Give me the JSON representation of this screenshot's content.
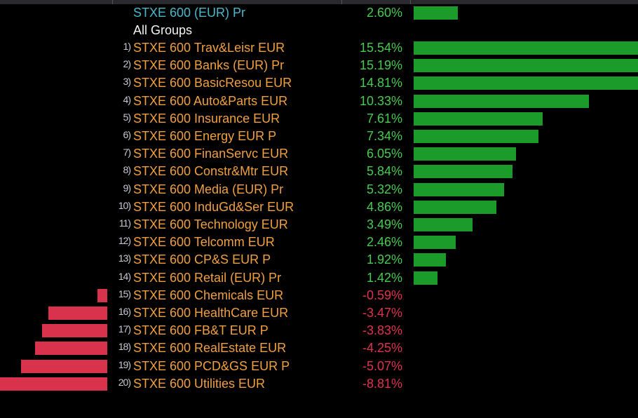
{
  "chart_data": {
    "type": "bar",
    "orientation": "horizontal",
    "benchmark": {
      "name": "STXE 600 (EUR) Pr",
      "value": 2.6,
      "label": "2.60%"
    },
    "group_label": "All Groups",
    "categories": [
      "STXE 600 Trav&Leisr EUR",
      "STXE 600 Banks (EUR) Pr",
      "STXE 600 BasicResou EUR",
      "STXE 600 Auto&Parts EUR",
      "STXE 600 Insurance EUR",
      "STXE 600 Energy EUR P",
      "STXE 600 FinanServc EUR",
      "STXE 600 Constr&Mtr EUR",
      "STXE 600 Media (EUR) Pr",
      "STXE 600 InduGd&Ser EUR",
      "STXE 600 Technology EUR",
      "STXE 600 Telcomm EUR",
      "STXE 600 CP&S EUR P",
      "STXE 600 Retail (EUR) Pr",
      "STXE 600 Chemicals EUR",
      "STXE 600 HealthCare EUR",
      "STXE 600 FB&T EUR P",
      "STXE 600 RealEstate EUR",
      "STXE 600 PCD&GS EUR P",
      "STXE 600 Utilities EUR"
    ],
    "indices": [
      "1)",
      "2)",
      "3)",
      "4)",
      "5)",
      "6)",
      "7)",
      "8)",
      "9)",
      "10)",
      "11)",
      "12)",
      "13)",
      "14)",
      "15)",
      "16)",
      "17)",
      "18)",
      "19)",
      "20)"
    ],
    "values": [
      15.54,
      15.19,
      14.81,
      10.33,
      7.61,
      7.34,
      6.05,
      5.84,
      5.32,
      4.86,
      3.49,
      2.46,
      1.92,
      1.42,
      -0.59,
      -3.47,
      -3.83,
      -4.25,
      -5.07,
      -8.81
    ],
    "labels": [
      "15.54%",
      "15.19%",
      "14.81%",
      "10.33%",
      "7.61%",
      "7.34%",
      "6.05%",
      "5.84%",
      "5.32%",
      "4.86%",
      "3.49%",
      "2.46%",
      "1.92%",
      "1.42%",
      "-0.59%",
      "-3.47%",
      "-3.83%",
      "-4.25%",
      "-5.07%",
      "-8.81%"
    ],
    "unit": "%",
    "colors": {
      "positive": "#1b9c2a",
      "negative": "#d8324c",
      "name": "#f0a040",
      "benchmark_name": "#4ab8cc"
    }
  }
}
